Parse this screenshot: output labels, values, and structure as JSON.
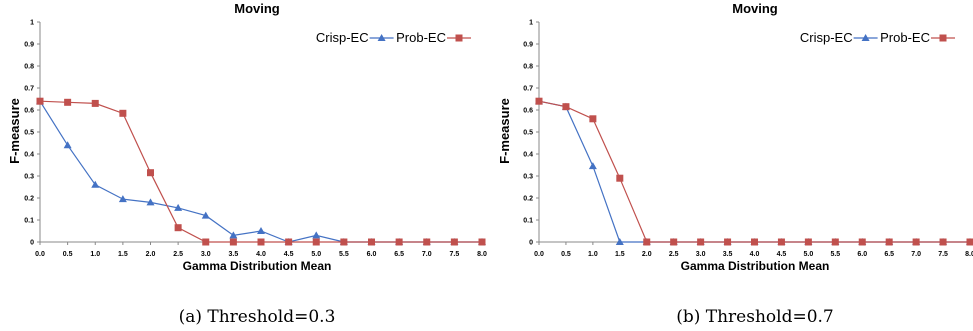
{
  "chart_data": [
    {
      "type": "line",
      "title": "Moving",
      "xlabel": "Gamma Distribution Mean",
      "ylabel": "F-measure",
      "caption": "(a) Threshold=0.3",
      "x": [
        "0.0",
        "0.5",
        "1.0",
        "1.5",
        "2.0",
        "2.5",
        "3.0",
        "3.5",
        "4.0",
        "4.5",
        "5.0",
        "5.5",
        "6.0",
        "6.5",
        "7.0",
        "7.5",
        "8.0"
      ],
      "yticks": [
        "0",
        "0.1",
        "0.2",
        "0.3",
        "0.4",
        "0.5",
        "0.6",
        "0.7",
        "0.8",
        "0.9",
        "1"
      ],
      "ylim": [
        0,
        1
      ],
      "legend_position": "top-right",
      "series": [
        {
          "name": "Crisp-EC",
          "color": "#4472C4",
          "marker": "triangle",
          "values": [
            0.64,
            0.44,
            0.26,
            0.195,
            0.18,
            0.155,
            0.12,
            0.03,
            0.05,
            0.0,
            0.03,
            0.0,
            0.0,
            0.0,
            0.0,
            0.0,
            0.0
          ]
        },
        {
          "name": "Prob-EC",
          "color": "#C0504D",
          "marker": "square",
          "values": [
            0.64,
            0.635,
            0.63,
            0.585,
            0.315,
            0.065,
            0.0,
            0.0,
            0.0,
            0.0,
            0.0,
            0.0,
            0.0,
            0.0,
            0.0,
            0.0,
            0.0
          ]
        }
      ]
    },
    {
      "type": "line",
      "title": "Moving",
      "xlabel": "Gamma Distribution Mean",
      "ylabel": "F-measure",
      "caption": "(b) Threshold=0.7",
      "x": [
        "0.0",
        "0.5",
        "1.0",
        "1.5",
        "2.0",
        "2.5",
        "3.0",
        "3.5",
        "4.0",
        "4.5",
        "5.0",
        "5.5",
        "6.0",
        "6.5",
        "7.0",
        "7.5",
        "8.0"
      ],
      "yticks": [
        "0",
        "0.1",
        "0.2",
        "0.3",
        "0.4",
        "0.5",
        "0.6",
        "0.7",
        "0.8",
        "0.9",
        "1"
      ],
      "ylim": [
        0,
        1
      ],
      "legend_position": "top-right",
      "series": [
        {
          "name": "Crisp-EC",
          "color": "#4472C4",
          "marker": "triangle",
          "values": [
            0.64,
            0.615,
            0.345,
            0.0,
            0.0,
            0.0,
            0.0,
            0.0,
            0.0,
            0.0,
            0.0,
            0.0,
            0.0,
            0.0,
            0.0,
            0.0,
            0.0
          ]
        },
        {
          "name": "Prob-EC",
          "color": "#C0504D",
          "marker": "square",
          "values": [
            0.64,
            0.615,
            0.56,
            0.29,
            0.0,
            0.0,
            0.0,
            0.0,
            0.0,
            0.0,
            0.0,
            0.0,
            0.0,
            0.0,
            0.0,
            0.0,
            0.0
          ]
        }
      ]
    }
  ]
}
